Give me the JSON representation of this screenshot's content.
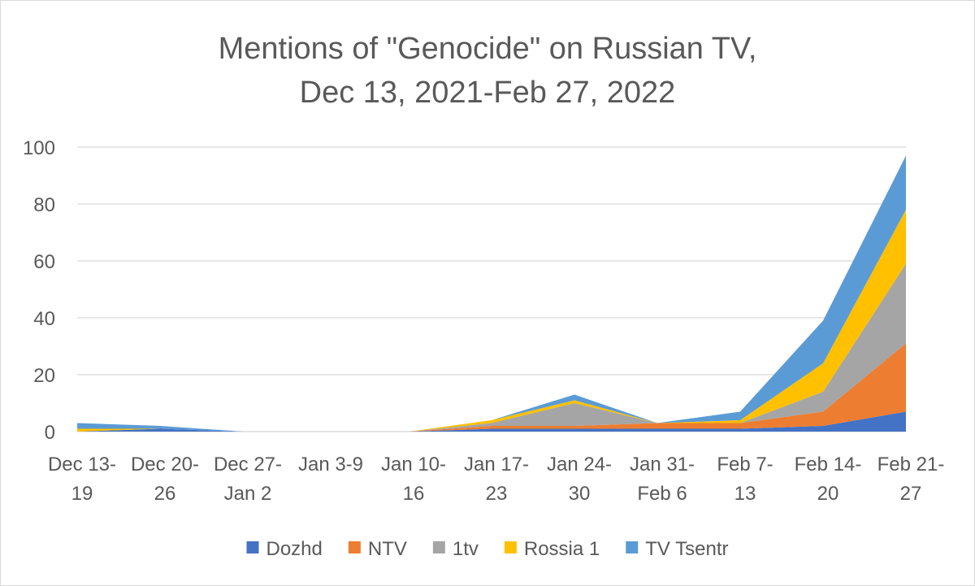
{
  "chart_data": {
    "type": "area",
    "stacked": true,
    "title": "Mentions of \"Genocide\" on Russian TV,",
    "subtitle": "Dec 13, 2021-Feb 27, 2022",
    "xlabel": "",
    "ylabel": "",
    "ylim": [
      0,
      100
    ],
    "y_ticks": [
      0,
      20,
      40,
      60,
      80,
      100
    ],
    "grid": true,
    "legend_position": "bottom",
    "categories": [
      [
        "Dec 13-",
        "19"
      ],
      [
        "Dec 20-",
        "26"
      ],
      [
        "Dec 27-",
        "Jan 2"
      ],
      [
        "Jan 3-9",
        ""
      ],
      [
        "Jan 10-",
        "16"
      ],
      [
        "Jan 17-",
        "23"
      ],
      [
        "Jan 24-",
        "30"
      ],
      [
        "Jan 31-",
        "Feb 6"
      ],
      [
        "Feb 7-",
        "13"
      ],
      [
        "Feb 14-",
        "20"
      ],
      [
        "Feb 21-",
        "27"
      ]
    ],
    "series": [
      {
        "name": "Dozhd",
        "color": "#4472c4",
        "values": [
          0,
          1,
          0,
          0,
          0,
          1,
          1,
          1,
          1,
          2,
          7
        ]
      },
      {
        "name": "NTV",
        "color": "#ed7d31",
        "values": [
          0,
          0,
          0,
          0,
          0,
          1,
          1,
          2,
          2,
          5,
          24
        ]
      },
      {
        "name": "1tv",
        "color": "#a5a5a5",
        "values": [
          0,
          0,
          0,
          0,
          0,
          1,
          8,
          0,
          0,
          7,
          28
        ]
      },
      {
        "name": "Rossia 1",
        "color": "#ffc000",
        "values": [
          1,
          0,
          0,
          0,
          0,
          1,
          1,
          0,
          1,
          10,
          19
        ]
      },
      {
        "name": "TV Tsentr",
        "color": "#5b9bd5",
        "values": [
          2,
          1,
          0,
          0,
          0,
          0,
          2,
          0,
          3,
          15,
          19
        ]
      }
    ]
  }
}
